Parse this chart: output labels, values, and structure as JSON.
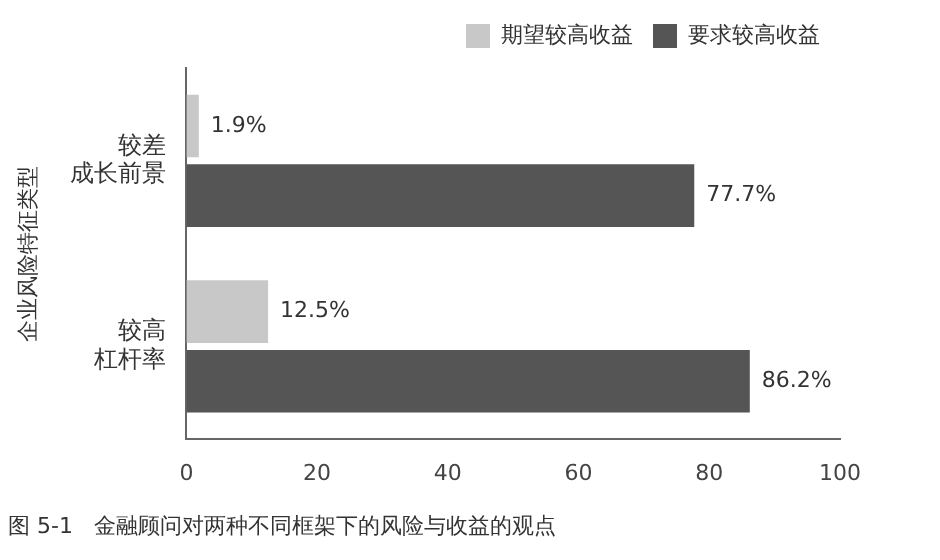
{
  "chart_data": {
    "type": "bar",
    "orientation": "horizontal",
    "title": "图 5-1   金融顾问对两种不同框架下的风险与收益的观点",
    "ylabel": "企业风险特征类型",
    "categories": [
      "较差成长前景",
      "较高杠杆率"
    ],
    "series": [
      {
        "name": "期望较高收益",
        "color": "#c8c8c8",
        "values": [
          1.9,
          12.5
        ],
        "value_labels": [
          "1.9%",
          "12.5%"
        ]
      },
      {
        "name": "要求较高收益",
        "color": "#555555",
        "values": [
          77.7,
          86.2
        ],
        "value_labels": [
          "77.7%",
          "86.2%"
        ]
      }
    ],
    "xlim": [
      0,
      100
    ],
    "xticks": [
      0,
      20,
      40,
      60,
      80,
      100
    ],
    "grid": false,
    "legend": "top"
  }
}
